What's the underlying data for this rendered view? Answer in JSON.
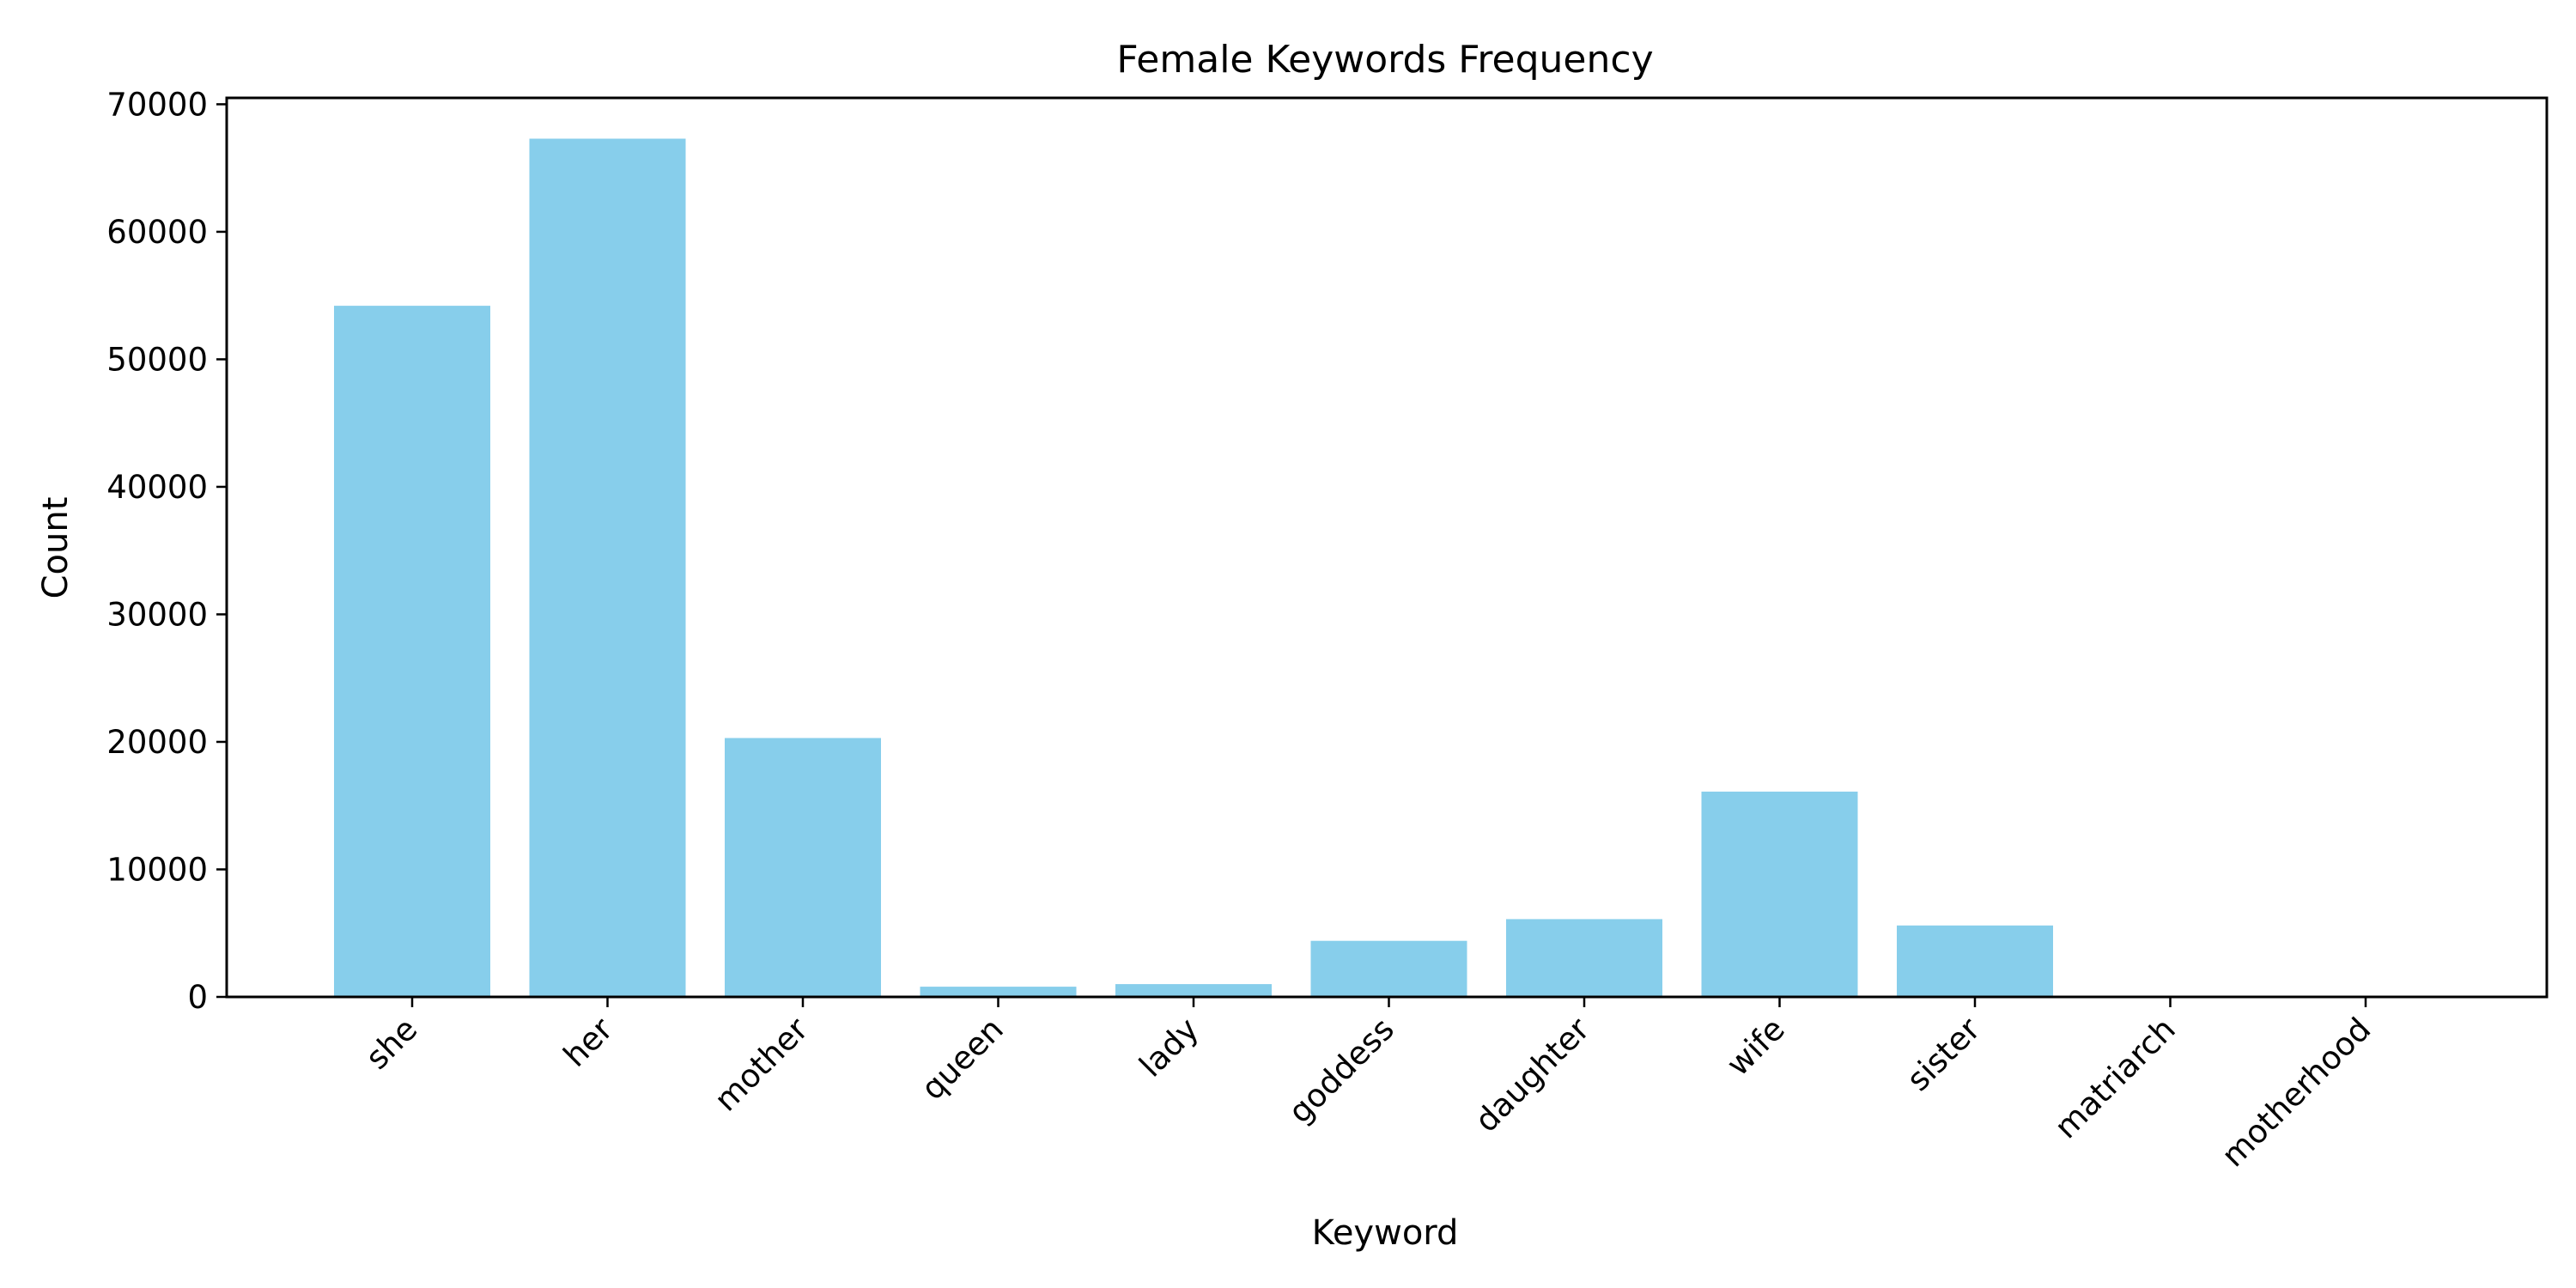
{
  "chart_data": {
    "type": "bar",
    "title": "Female Keywords Frequency",
    "xlabel": "Keyword",
    "ylabel": "Count",
    "categories": [
      "she",
      "her",
      "mother",
      "queen",
      "lady",
      "goddess",
      "daughter",
      "wife",
      "sister",
      "matriarch",
      "motherhood"
    ],
    "values": [
      54200,
      67300,
      20300,
      800,
      1000,
      4400,
      6100,
      16100,
      5600,
      50,
      30
    ],
    "ylim": [
      0,
      70500
    ],
    "yticks": [
      0,
      10000,
      20000,
      30000,
      40000,
      50000,
      60000,
      70000
    ],
    "bar_color": "#87CEEB",
    "grid": false,
    "legend": "none"
  }
}
